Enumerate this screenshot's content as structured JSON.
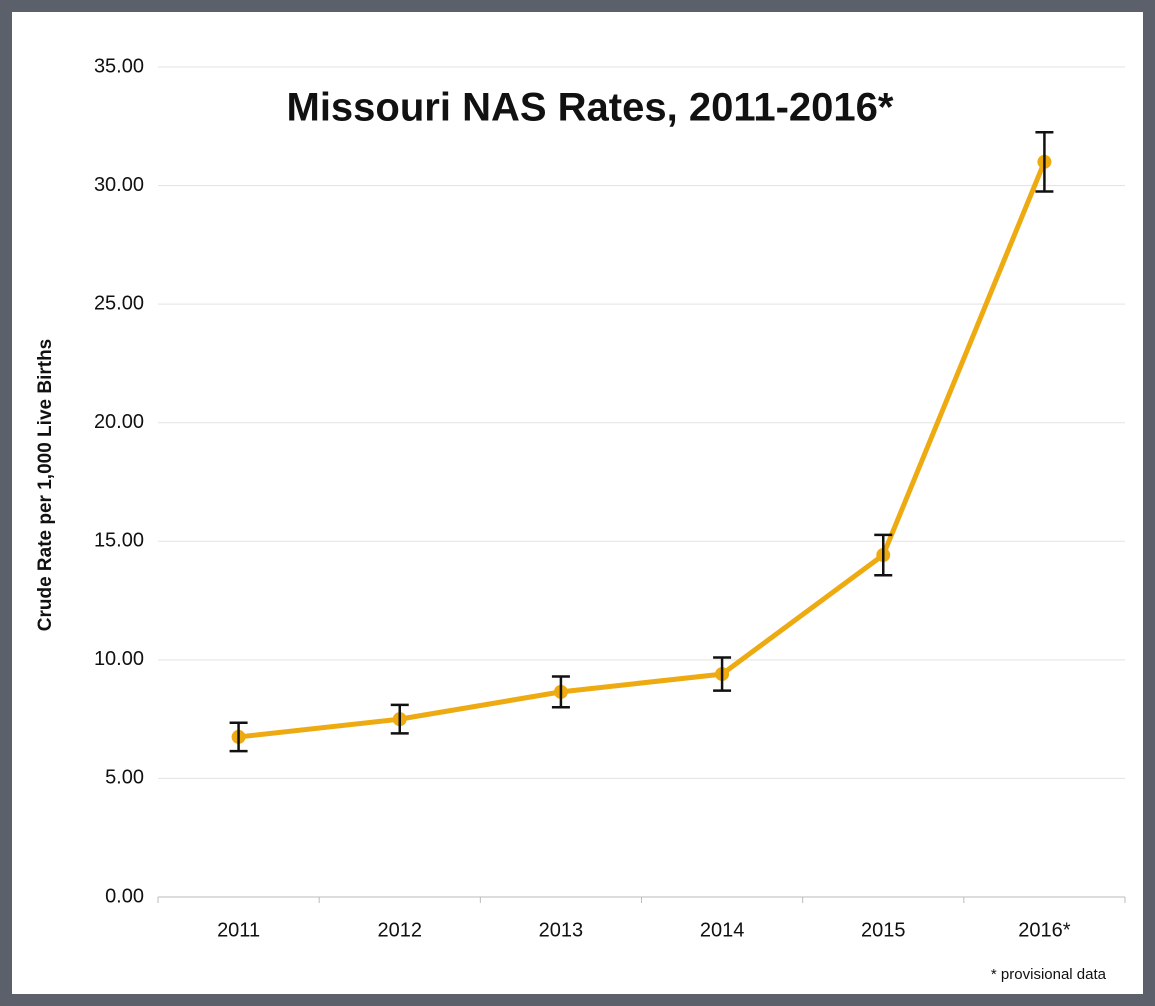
{
  "chart_data": {
    "type": "line",
    "title": "Missouri NAS Rates, 2011-2016*",
    "y_label": "Crude Rate per 1,000 Live Births",
    "note": "* provisional data",
    "categories": [
      "2011",
      "2012",
      "2013",
      "2014",
      "2015",
      "2016*"
    ],
    "values": [
      6.75,
      7.5,
      8.65,
      9.4,
      14.42,
      31.0
    ],
    "errors": [
      0.6,
      0.6,
      0.65,
      0.7,
      0.85,
      1.25
    ],
    "color": "#eeaa11",
    "ylim": [
      0,
      35
    ],
    "yticks": [
      {
        "value": 0,
        "label": "0.00"
      },
      {
        "value": 5,
        "label": "5.00"
      },
      {
        "value": 10,
        "label": "10.00"
      },
      {
        "value": 15,
        "label": "15.00"
      },
      {
        "value": 20,
        "label": "20.00"
      },
      {
        "value": 25,
        "label": "25.00"
      },
      {
        "value": 30,
        "label": "30.00"
      },
      {
        "value": 35,
        "label": "35.00"
      }
    ],
    "grid": true
  }
}
